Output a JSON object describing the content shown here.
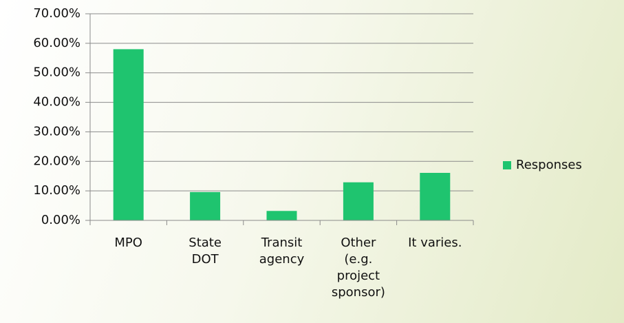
{
  "chart_data": {
    "type": "bar",
    "categories": [
      "MPO",
      "State DOT",
      "Transit agency",
      "Other (e.g. project sponsor)",
      "It varies."
    ],
    "series": [
      {
        "name": "Responses",
        "color": "#1fc46f",
        "values": [
          58,
          9.6,
          3.2,
          12.9,
          16.1
        ]
      }
    ],
    "ylim": [
      0,
      70
    ],
    "yticks": [
      {
        "value": 0,
        "label": "0.00%"
      },
      {
        "value": 10,
        "label": "10.00%"
      },
      {
        "value": 20,
        "label": "20.00%"
      },
      {
        "value": 30,
        "label": "30.00%"
      },
      {
        "value": 40,
        "label": "40.00%"
      },
      {
        "value": 50,
        "label": "50.00%"
      },
      {
        "value": 60,
        "label": "60.00%"
      },
      {
        "value": 70,
        "label": "70.00%"
      }
    ],
    "grid": true,
    "legend": "right"
  }
}
